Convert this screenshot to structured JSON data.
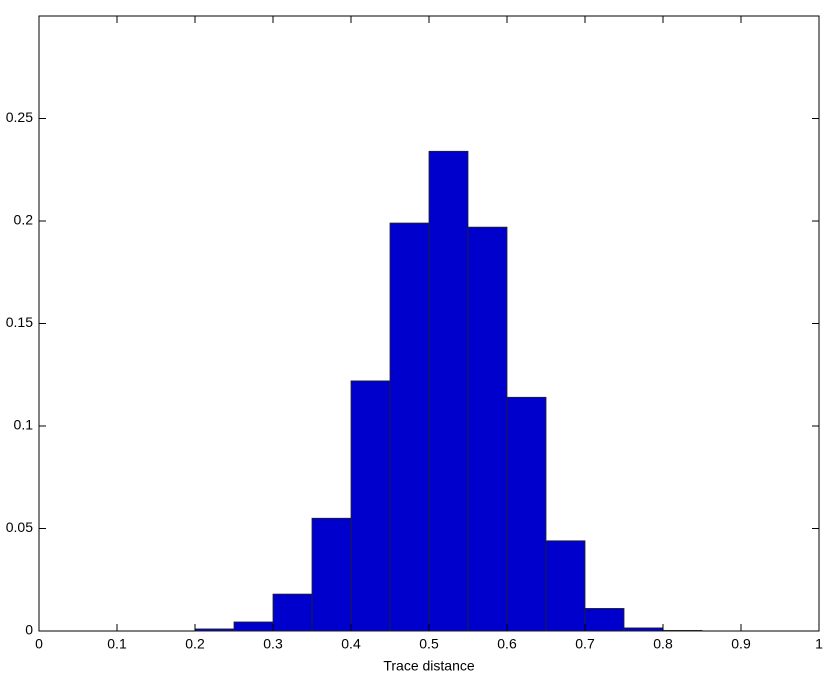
{
  "chart_data": {
    "type": "histogram",
    "xlabel": "Trace distance",
    "bins": [
      0.2,
      0.25,
      0.3,
      0.35,
      0.4,
      0.45,
      0.5,
      0.55,
      0.6,
      0.65,
      0.7,
      0.75,
      0.8,
      0.85
    ],
    "values": [
      0.001,
      0.0044,
      0.018,
      0.055,
      0.122,
      0.199,
      0.234,
      0.197,
      0.114,
      0.044,
      0.011,
      0.0015,
      0.0003
    ],
    "color": "#0000cc",
    "xlim": [
      0,
      1
    ],
    "xticks": [
      0,
      0.1,
      0.2,
      0.3,
      0.4,
      0.5,
      0.6,
      0.7,
      0.8,
      0.9,
      1
    ],
    "ylim": [
      0,
      0.3
    ],
    "yticks": [
      0,
      0.05,
      0.1,
      0.15,
      0.2,
      0.25
    ]
  }
}
